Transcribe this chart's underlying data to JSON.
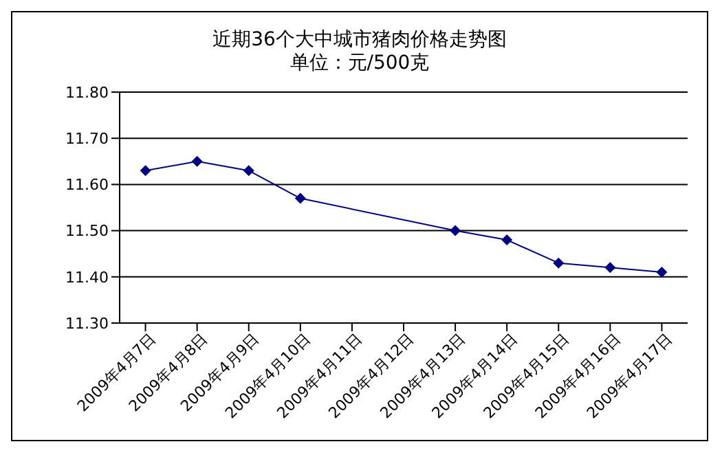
{
  "chart_data": {
    "type": "line",
    "title": "近期36个大中城市猪肉价格走势图",
    "subtitle": "单位：元/500克",
    "categories": [
      "2009年4月7日",
      "2009年4月8日",
      "2009年4月9日",
      "2009年4月10日",
      "2009年4月11日",
      "2009年4月12日",
      "2009年4月13日",
      "2009年4月14日",
      "2009年4月15日",
      "2009年4月16日",
      "2009年4月17日"
    ],
    "series": [
      {
        "color": "#000080",
        "values": [
          11.63,
          11.65,
          11.63,
          11.57,
          null,
          null,
          11.5,
          11.48,
          11.43,
          11.42,
          11.41
        ]
      }
    ],
    "ylim": [
      11.3,
      11.8
    ],
    "yticks": [
      {
        "value": 11.3,
        "label": "11.30"
      },
      {
        "value": 11.4,
        "label": "11.40"
      },
      {
        "value": 11.5,
        "label": "11.50"
      },
      {
        "value": 11.6,
        "label": "11.60"
      },
      {
        "value": 11.7,
        "label": "11.70"
      },
      {
        "value": 11.8,
        "label": "11.80"
      }
    ],
    "grid": "y",
    "marker": "diamond",
    "line_style": "solid",
    "legend": false
  }
}
